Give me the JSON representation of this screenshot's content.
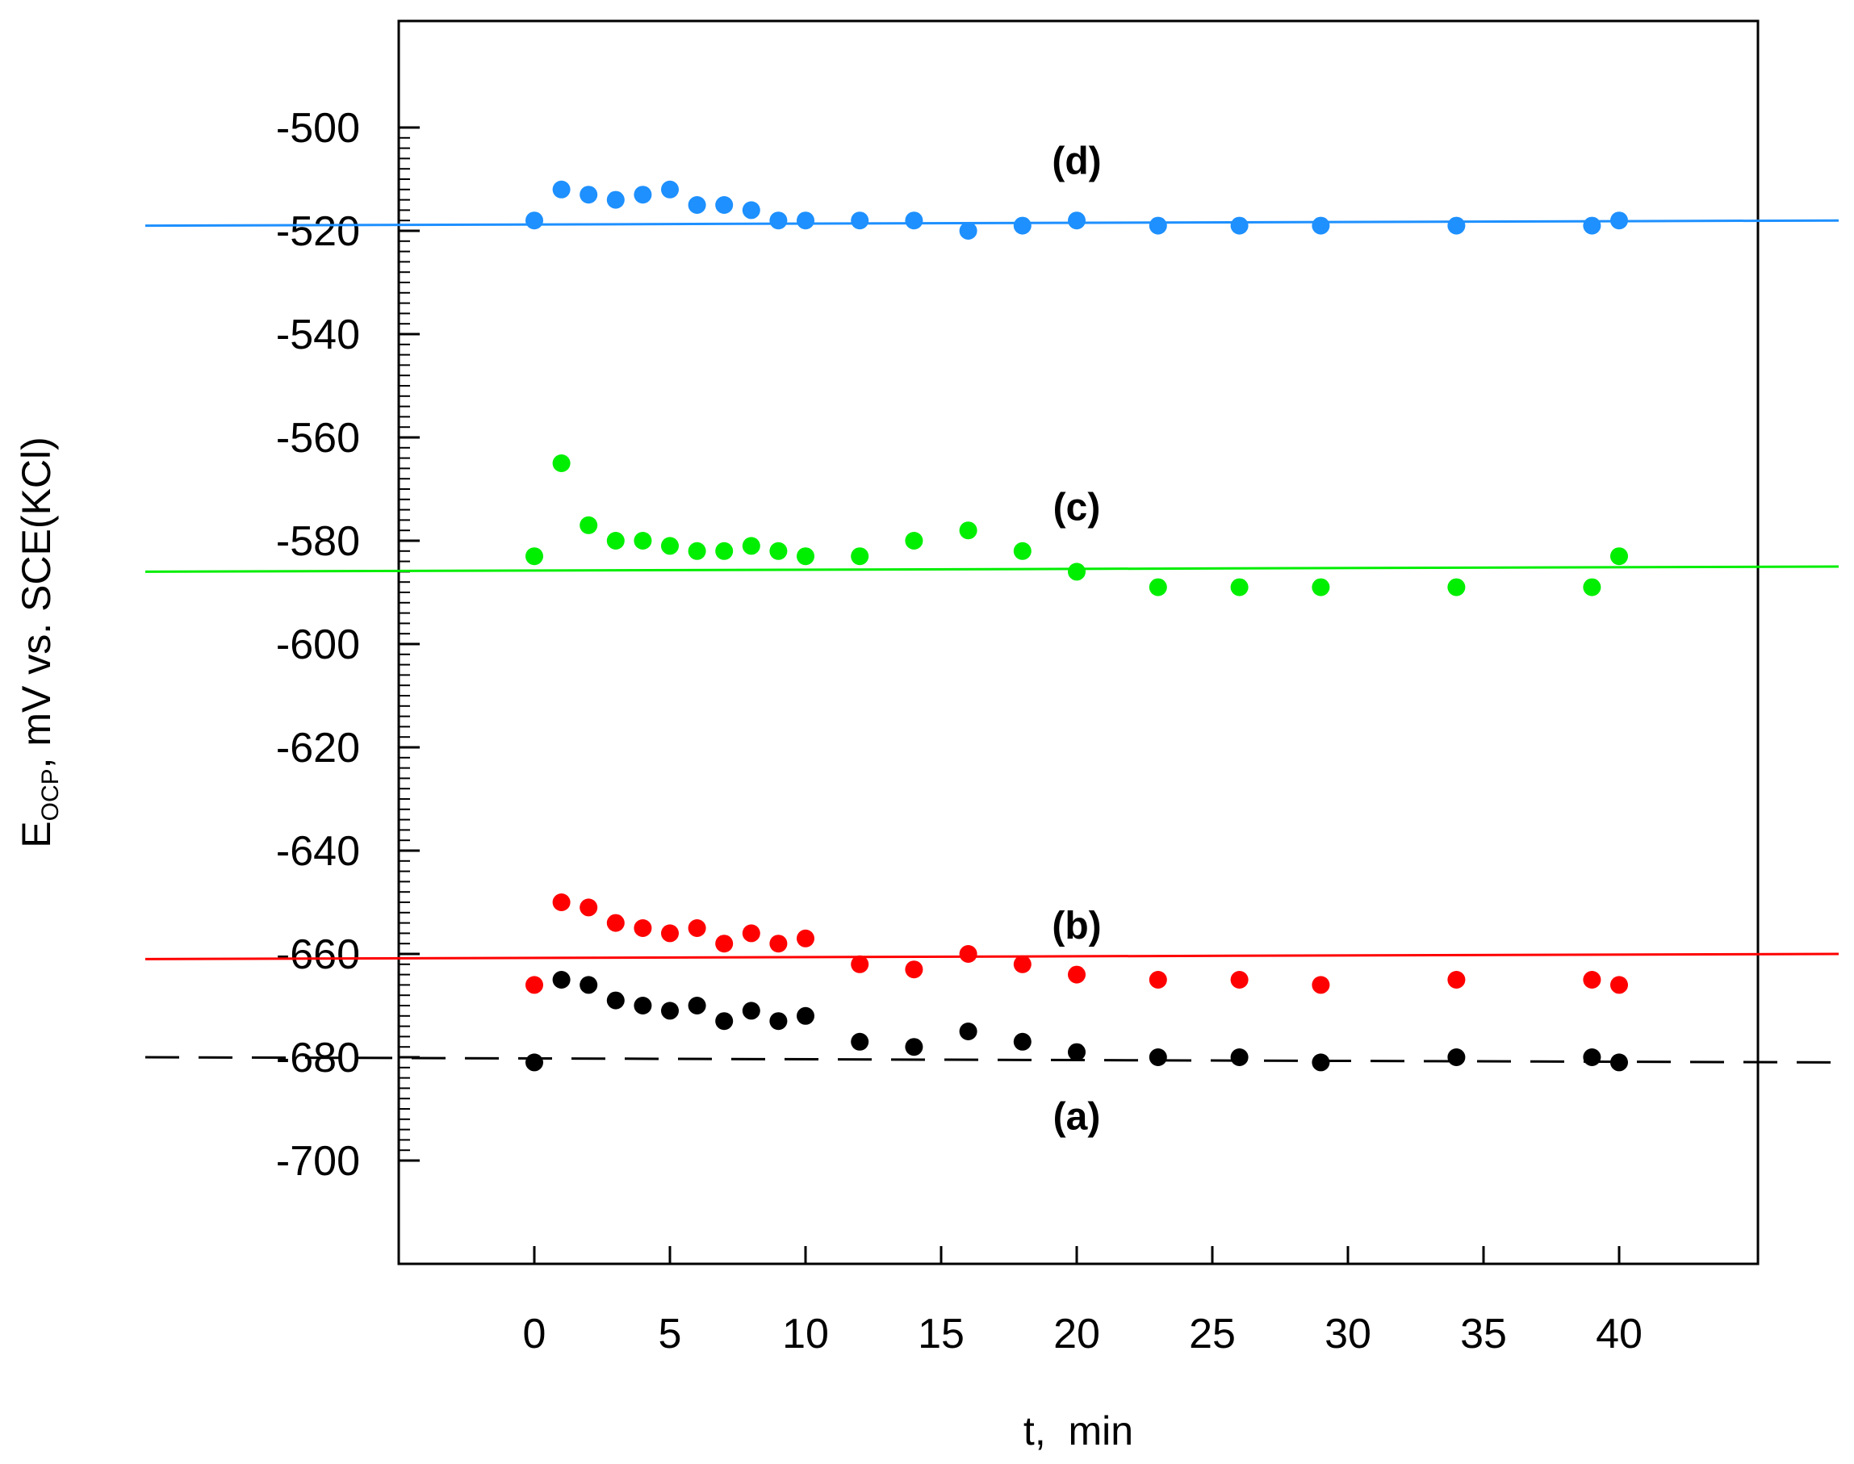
{
  "chart_data": {
    "type": "scatter",
    "title": "",
    "xlabel": "t,  min",
    "ylabel": {
      "main": "E",
      "subscript": "OCP",
      "rest": ", mV vs. SCE(KCl)"
    },
    "xlim": [
      -5,
      45
    ],
    "ylim": [
      -720,
      -480
    ],
    "xticks": [
      0,
      5,
      10,
      15,
      20,
      25,
      30,
      35,
      40
    ],
    "yticks": [
      -500,
      -520,
      -540,
      -560,
      -580,
      -600,
      -620,
      -640,
      -660,
      -680,
      -700
    ],
    "grid": false,
    "series": [
      {
        "name": "(a)",
        "color": "#000000",
        "line_style": "dashed",
        "line_y": [
          -680,
          -681
        ],
        "label_at": [
          20,
          -694
        ],
        "x": [
          0,
          1,
          2,
          3,
          4,
          5,
          6,
          7,
          8,
          9,
          10,
          12,
          14,
          16,
          18,
          20,
          23,
          26,
          29,
          34,
          39,
          40
        ],
        "y": [
          -681,
          -665,
          -666,
          -669,
          -670,
          -671,
          -670,
          -673,
          -671,
          -673,
          -672,
          -677,
          -678,
          -675,
          -677,
          -679,
          -680,
          -680,
          -681,
          -680,
          -680,
          -681
        ]
      },
      {
        "name": "(b)",
        "color": "#ff0000",
        "line_style": "solid",
        "line_y": [
          -661,
          -660
        ],
        "label_at": [
          20,
          -657
        ],
        "x": [
          0,
          1,
          2,
          3,
          4,
          5,
          6,
          7,
          8,
          9,
          10,
          12,
          14,
          16,
          18,
          20,
          23,
          26,
          29,
          34,
          39,
          40
        ],
        "y": [
          -666,
          -650,
          -651,
          -654,
          -655,
          -656,
          -655,
          -658,
          -656,
          -658,
          -657,
          -662,
          -663,
          -660,
          -662,
          -664,
          -665,
          -665,
          -666,
          -665,
          -665,
          -666
        ]
      },
      {
        "name": "(c)",
        "color": "#00ee00",
        "line_style": "solid",
        "line_y": [
          -586,
          -585
        ],
        "label_at": [
          20,
          -576
        ],
        "x": [
          0,
          1,
          2,
          3,
          4,
          5,
          6,
          7,
          8,
          9,
          10,
          12,
          14,
          16,
          18,
          20,
          23,
          26,
          29,
          34,
          39,
          40
        ],
        "y": [
          -583,
          -565,
          -577,
          -580,
          -580,
          -581,
          -582,
          -582,
          -581,
          -582,
          -583,
          -583,
          -580,
          -578,
          -582,
          -586,
          -589,
          -589,
          -589,
          -589,
          -589,
          -583
        ]
      },
      {
        "name": "(d)",
        "color": "#1e90ff",
        "line_style": "solid",
        "line_y": [
          -519,
          -518
        ],
        "label_at": [
          20,
          -509
        ],
        "x": [
          0,
          1,
          2,
          3,
          4,
          5,
          6,
          7,
          8,
          9,
          10,
          12,
          14,
          16,
          18,
          20,
          23,
          26,
          29,
          34,
          39,
          40
        ],
        "y": [
          -518,
          -512,
          -513,
          -514,
          -513,
          -512,
          -515,
          -515,
          -516,
          -518,
          -518,
          -518,
          -518,
          -520,
          -519,
          -518,
          -519,
          -519,
          -519,
          -519,
          -519,
          -518
        ]
      }
    ]
  }
}
